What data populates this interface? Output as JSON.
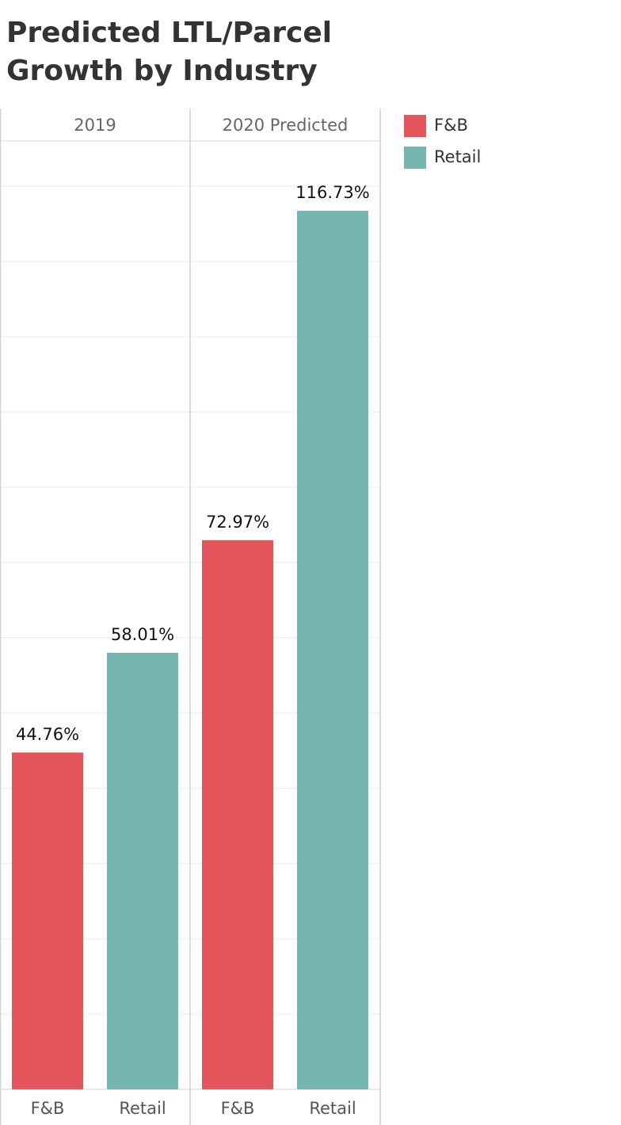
{
  "chart_data": {
    "type": "bar",
    "title": "Predicted LTL/Parcel Growth by Industry",
    "panes": [
      "2019",
      "2020 Predicted"
    ],
    "categories": [
      "F&B",
      "Retail"
    ],
    "series": [
      {
        "name": "F&B",
        "color": "#e3575c",
        "values": [
          44.76,
          72.97
        ],
        "value_labels": [
          "44.76%",
          "72.97%"
        ]
      },
      {
        "name": "Retail",
        "color": "#75b6b1",
        "values": [
          58.01,
          116.73
        ],
        "value_labels": [
          "58.01%",
          "116.73%"
        ]
      }
    ],
    "ylim": [
      0,
      126
    ],
    "yticks": [
      10,
      20,
      30,
      40,
      50,
      60,
      70,
      80,
      90,
      100,
      110,
      120
    ],
    "grid": true,
    "legend": "right"
  }
}
